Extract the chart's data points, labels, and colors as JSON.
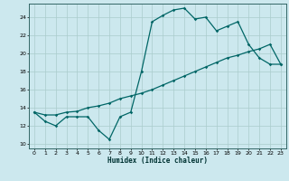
{
  "title": "",
  "xlabel": "Humidex (Indice chaleur)",
  "ylabel": "",
  "bg_color": "#cce8ee",
  "grid_color": "#aacccc",
  "line_color": "#006666",
  "xlim": [
    -0.5,
    23.5
  ],
  "ylim": [
    9.5,
    25.5
  ],
  "yticks": [
    10,
    12,
    14,
    16,
    18,
    20,
    22,
    24
  ],
  "xticks": [
    0,
    1,
    2,
    3,
    4,
    5,
    6,
    7,
    8,
    9,
    10,
    11,
    12,
    13,
    14,
    15,
    16,
    17,
    18,
    19,
    20,
    21,
    22,
    23
  ],
  "curve1_x": [
    0,
    1,
    2,
    3,
    4,
    5,
    6,
    7,
    8,
    9,
    10,
    11,
    12,
    13,
    14,
    15,
    16,
    17,
    18,
    19,
    20,
    21,
    22,
    23
  ],
  "curve1_y": [
    13.5,
    12.5,
    12.0,
    13.0,
    13.0,
    13.0,
    11.5,
    10.5,
    13.0,
    13.5,
    18.0,
    23.5,
    24.2,
    24.8,
    25.0,
    23.8,
    24.0,
    22.5,
    23.0,
    23.5,
    21.0,
    19.5,
    18.8,
    18.8
  ],
  "curve2_x": [
    0,
    1,
    2,
    3,
    4,
    5,
    6,
    7,
    8,
    9,
    10,
    11,
    12,
    13,
    14,
    15,
    16,
    17,
    18,
    19,
    20,
    21,
    22,
    23
  ],
  "curve2_y": [
    13.5,
    13.2,
    13.2,
    13.5,
    13.6,
    14.0,
    14.2,
    14.5,
    15.0,
    15.3,
    15.6,
    16.0,
    16.5,
    17.0,
    17.5,
    18.0,
    18.5,
    19.0,
    19.5,
    19.8,
    20.2,
    20.5,
    21.0,
    18.8
  ]
}
